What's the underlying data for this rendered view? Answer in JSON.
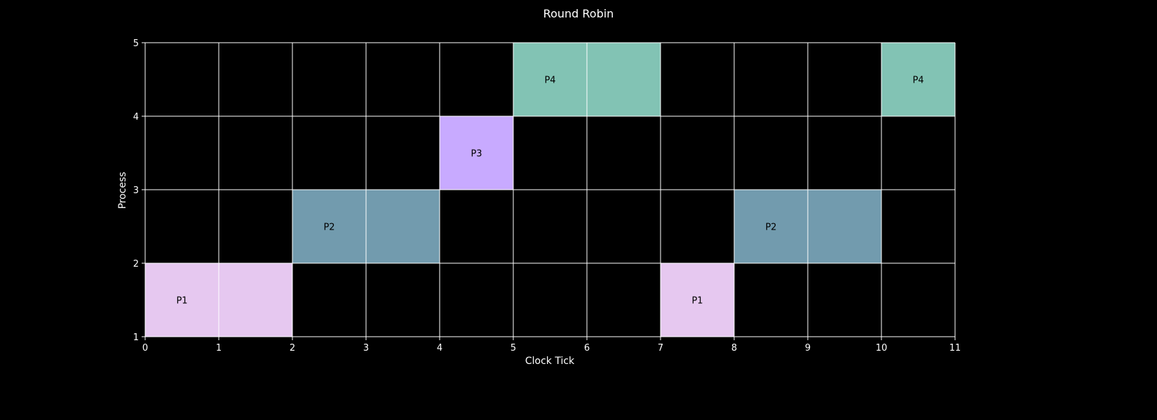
{
  "chart_data": {
    "type": "gantt",
    "title": "Round Robin",
    "xlabel": "Clock Tick",
    "ylabel": "Process",
    "xlim": [
      0,
      11
    ],
    "ylim": [
      1,
      5
    ],
    "xticks": [
      "0",
      "1",
      "2",
      "3",
      "4",
      "5",
      "6",
      "7",
      "8",
      "9",
      "10",
      "11"
    ],
    "yticks": [
      "1",
      "2",
      "3",
      "4",
      "5"
    ],
    "grid": true,
    "segments": [
      {
        "label": "P1",
        "start": 0,
        "end": 2,
        "row": 1,
        "color": "#e6c8f0"
      },
      {
        "label": "P2",
        "start": 2,
        "end": 4,
        "row": 2,
        "color": "#729bae"
      },
      {
        "label": "P3",
        "start": 4,
        "end": 5,
        "row": 3,
        "color": "#c8aaff"
      },
      {
        "label": "P4",
        "start": 5,
        "end": 7,
        "row": 4,
        "color": "#82c3b4"
      },
      {
        "label": "P1",
        "start": 7,
        "end": 8,
        "row": 1,
        "color": "#e6c8f0"
      },
      {
        "label": "P2",
        "start": 8,
        "end": 10,
        "row": 2,
        "color": "#729bae"
      },
      {
        "label": "P4",
        "start": 10,
        "end": 11,
        "row": 4,
        "color": "#82c3b4"
      }
    ]
  },
  "colors": {
    "background": "#000000",
    "foreground": "#ffffff",
    "label_text": "#000000"
  }
}
